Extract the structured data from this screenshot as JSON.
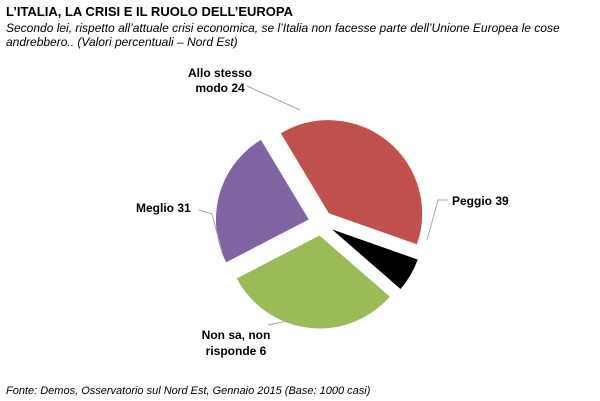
{
  "chart_data": {
    "type": "pie",
    "title": "L’ITALIA,  LA CRISI E IL RUOLO DELL’EUROPA",
    "subtitle": "Secondo lei, rispetto all’attuale crisi economica, se l’Italia non facesse parte dell’Unione Europea le cose andrebbero..  (Valori percentuali – Nord Est)",
    "source": "Fonte: Demos, Osservatorio sul Nord Est, Gennaio 2015 (Base: 1000 casi)",
    "slices": [
      {
        "label": "Peggio 39",
        "value": 39,
        "color": "#C0504D"
      },
      {
        "label": "Non sa, non risponde 6",
        "value": 6,
        "color": "#000000"
      },
      {
        "label": "Meglio 31",
        "value": 31,
        "color": "#9BBB59"
      },
      {
        "label": "Allo stesso modo 24",
        "value": 24,
        "color": "#8064A2"
      }
    ]
  }
}
